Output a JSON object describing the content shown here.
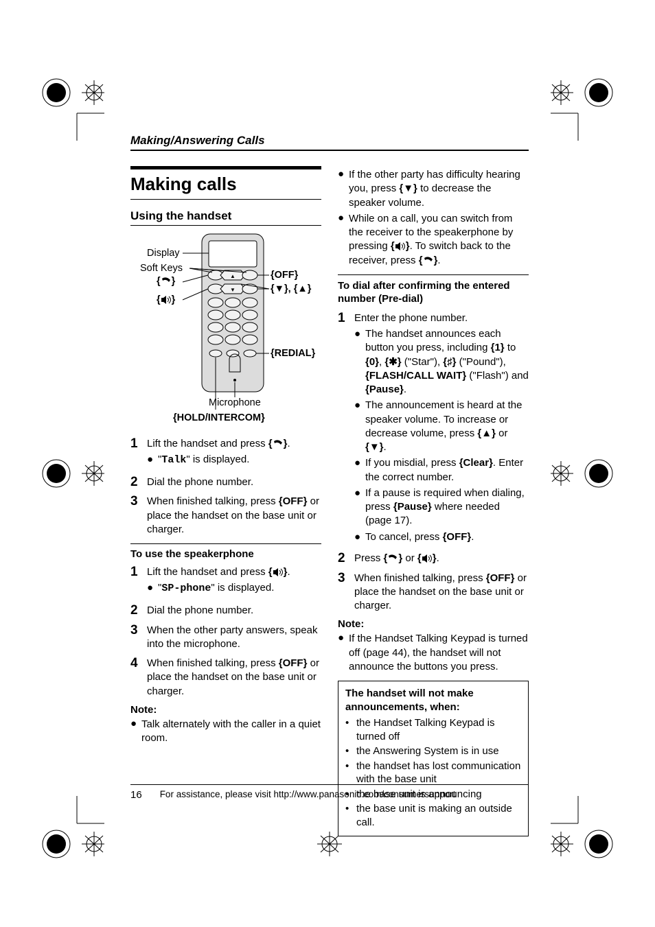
{
  "header": {
    "section": "Making/Answering Calls"
  },
  "title": "Making calls",
  "subhead": "Using the handset",
  "diagram": {
    "labels": {
      "display": "Display",
      "softkeys": "Soft Keys",
      "talk_key": "{↷}",
      "speaker_key": "{⇦}",
      "off_key": "{OFF}",
      "arrows": "{▼}, {▲}",
      "redial": "{REDIAL}",
      "microphone": "Microphone",
      "hold": "{HOLD/INTERCOM}"
    }
  },
  "left": {
    "steps1": {
      "s1_a": "Lift the handset and press ",
      "s1_b": ".",
      "s1_sub_a": "\"",
      "s1_sub_mono": "Talk",
      "s1_sub_b": "\" is displayed.",
      "s2": "Dial the phone number.",
      "s3_a": "When finished talking, press ",
      "s3_key": "{OFF}",
      "s3_b": " or place the handset on the base unit or charger."
    },
    "sp_title": "To use the speakerphone",
    "steps2": {
      "s1_a": "Lift the handset and press ",
      "s1_b": ".",
      "s1_sub_a": "\"",
      "s1_sub_mono": "SP-phone",
      "s1_sub_b": "\" is displayed.",
      "s2": "Dial the phone number.",
      "s3": "When the other party answers, speak into the microphone.",
      "s4_a": "When finished talking, press ",
      "s4_key": "{OFF}",
      "s4_b": " or place the handset on the base unit or charger."
    },
    "note_label": "Note:",
    "note1": "Talk alternately with the caller in a quiet room."
  },
  "right": {
    "top_b1_a": "If the other party has difficulty hearing you, press ",
    "top_b1_key": "{▼}",
    "top_b1_b": " to decrease the speaker volume.",
    "top_b2_a": "While on a call, you can switch from the receiver to the speakerphone by pressing ",
    "top_b2_b": ". To switch back to the receiver, press ",
    "top_b2_c": ".",
    "predial_title": "To dial after confirming the entered number (Pre-dial)",
    "pd_s1": "Enter the phone number.",
    "pd_b1_a": "The handset announces each button you press, including ",
    "pd_b1_k1": "{1}",
    "pd_b1_to": " to ",
    "pd_b1_k0": "{0}",
    "pd_b1_comma": ", ",
    "pd_b1_star": "{✱}",
    "pd_b1_startxt": " (\"Star\"), ",
    "pd_b1_pound": "{♯}",
    "pd_b1_poundtxt": " (\"Pound\"), ",
    "pd_b1_flash": "{FLASH/CALL WAIT}",
    "pd_b1_flashtxt": " (\"Flash\") and ",
    "pd_b1_pause": "{Pause}",
    "pd_b1_end": ".",
    "pd_b2_a": "The announcement is heard at the speaker volume. To increase or decrease volume, press ",
    "pd_b2_up": "{▲}",
    "pd_b2_or": " or ",
    "pd_b2_dn": "{▼}",
    "pd_b2_end": ".",
    "pd_b3_a": "If you misdial, press ",
    "pd_b3_key": "{Clear}",
    "pd_b3_b": ". Enter the correct number.",
    "pd_b4_a": "If a pause is required when dialing, press ",
    "pd_b4_key": "{Pause}",
    "pd_b4_b": " where needed (page 17).",
    "pd_b5_a": "To cancel, press ",
    "pd_b5_key": "{OFF}",
    "pd_b5_b": ".",
    "pd_s2_a": "Press ",
    "pd_s2_or": " or ",
    "pd_s2_end": ".",
    "pd_s3_a": "When finished talking, press ",
    "pd_s3_key": "{OFF}",
    "pd_s3_b": " or place the handset on the base unit  or charger.",
    "note_label": "Note:",
    "note1": "If the Handset Talking Keypad is turned off (page 44), the handset will not announce the buttons you press.",
    "box_title": "The handset will not make announcements, when:",
    "box_items": [
      "the Handset Talking Keypad is turned off",
      "the Answering System is in use",
      "the handset has lost communication with the base unit",
      "the base unit is announcing",
      "the base unit is making an outside call."
    ]
  },
  "footer": {
    "page": "16",
    "text": "For assistance, please visit http://www.panasonic.com/consumersupport"
  },
  "colors": {
    "text": "#000000",
    "bg": "#ffffff",
    "phone_body": "#dcdcdc",
    "phone_screen": "#ffffff",
    "phone_button": "#f2f2f2"
  }
}
